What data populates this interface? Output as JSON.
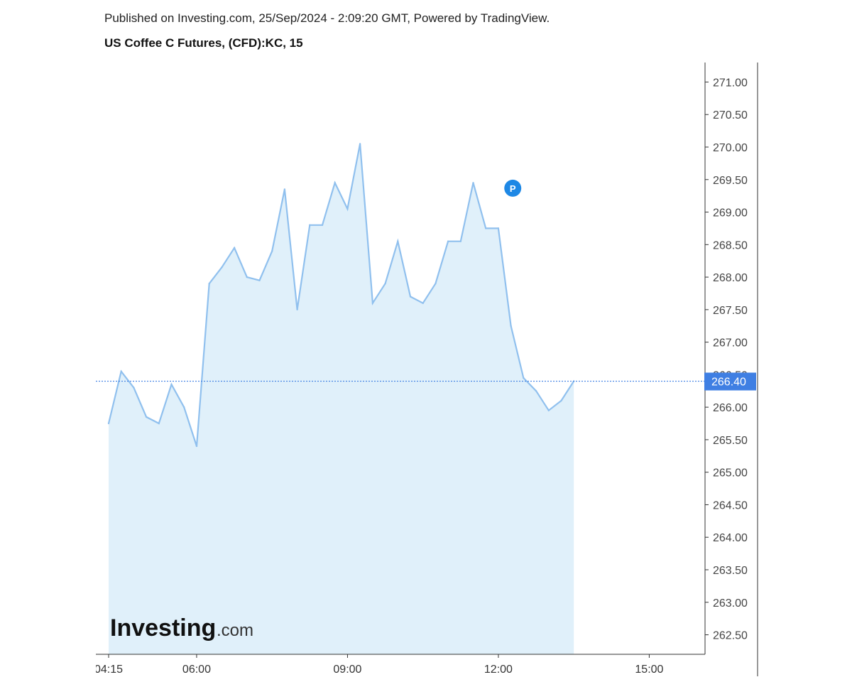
{
  "header": {
    "published": "Published on Investing.com, 25/Sep/2024 - 2:09:20 GMT, Powered by TradingView.",
    "instrument": "US Coffee C Futures, (CFD):KC, 15"
  },
  "logo": {
    "main": "Investing",
    "suffix": ".com"
  },
  "marker": {
    "label": "P",
    "color": "#1e88e5",
    "x": "11:45",
    "y": 269.4
  },
  "colors": {
    "line": "#90c0ee",
    "fill": "#e0f0fa",
    "price_tag": "#3f7fe3",
    "price_line": "#3f7fe3",
    "axis": "#333333"
  },
  "chart_data": {
    "type": "area",
    "title": "US Coffee C Futures, (CFD):KC, 15",
    "xlabel": "",
    "ylabel": "",
    "x": [
      "04:15",
      "04:30",
      "04:45",
      "05:00",
      "05:15",
      "05:30",
      "05:45",
      "06:00",
      "06:15",
      "06:30",
      "06:45",
      "07:00",
      "07:15",
      "07:30",
      "07:45",
      "08:00",
      "08:15",
      "08:30",
      "08:45",
      "09:00",
      "09:15",
      "09:30",
      "09:45",
      "10:00",
      "10:15",
      "10:30",
      "10:45",
      "11:00",
      "11:15",
      "11:30",
      "11:45",
      "12:00",
      "12:15",
      "12:30",
      "12:45",
      "13:00",
      "13:15",
      "13:30"
    ],
    "series": [
      {
        "values": [
          265.75,
          266.55,
          266.3,
          265.85,
          265.75,
          266.35,
          266.0,
          265.4,
          267.9,
          268.15,
          268.45,
          268.0,
          267.95,
          268.4,
          269.35,
          267.5,
          268.8,
          268.8,
          269.45,
          269.05,
          270.05,
          267.6,
          267.9,
          268.55,
          267.7,
          267.6,
          267.9,
          268.55,
          268.55,
          269.45,
          268.75,
          268.75,
          267.25,
          266.45,
          266.25,
          265.95,
          266.1,
          266.4
        ]
      }
    ],
    "current_price": "266.40",
    "ylim": [
      262.2,
      271.3
    ],
    "y_ticks": [
      "271.00",
      "270.50",
      "270.00",
      "269.50",
      "269.00",
      "268.50",
      "268.00",
      "267.50",
      "267.00",
      "266.50",
      "266.00",
      "265.50",
      "265.00",
      "264.50",
      "264.00",
      "263.50",
      "263.00",
      "262.50"
    ],
    "x_tick_labels": [
      "04:15",
      "06:00",
      "09:00",
      "12:00",
      "15:00"
    ],
    "x_range": [
      "04:15",
      "16:15"
    ],
    "grid": false,
    "legend": "none"
  }
}
